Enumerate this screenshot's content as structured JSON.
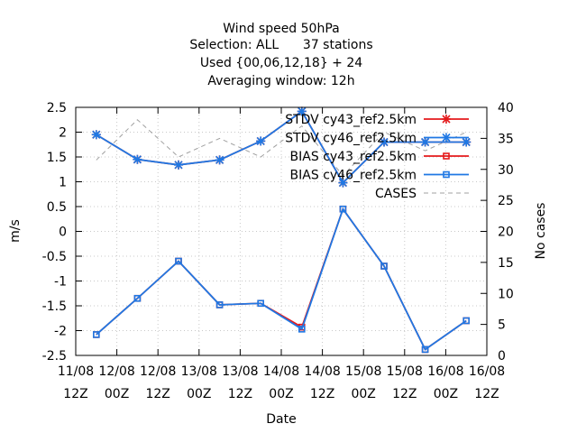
{
  "chart_data": {
    "type": "line",
    "title_lines": [
      "Wind speed 50hPa",
      "Selection: ALL      37 stations",
      "Used {00,06,12,18} + 24",
      "Averaging window: 12h"
    ],
    "xlabel": "Date",
    "ylabel": "m/s",
    "y2label": "No cases",
    "x_ticks": [
      {
        "line1": "11/08",
        "line2": "12Z"
      },
      {
        "line1": "12/08",
        "line2": "00Z"
      },
      {
        "line1": "12/08",
        "line2": "12Z"
      },
      {
        "line1": "13/08",
        "line2": "00Z"
      },
      {
        "line1": "13/08",
        "line2": "12Z"
      },
      {
        "line1": "14/08",
        "line2": "00Z"
      },
      {
        "line1": "14/08",
        "line2": "12Z"
      },
      {
        "line1": "15/08",
        "line2": "00Z"
      },
      {
        "line1": "15/08",
        "line2": "12Z"
      },
      {
        "line1": "16/08",
        "line2": "00Z"
      },
      {
        "line1": "16/08",
        "line2": "12Z"
      }
    ],
    "xlim": [
      0,
      10
    ],
    "ylim": [
      -2.5,
      2.5
    ],
    "y_ticks": [
      "-2.5",
      "-2",
      "-1.5",
      "-1",
      "-0.5",
      "0",
      "0.5",
      "1",
      "1.5",
      "2",
      "2.5"
    ],
    "y2lim": [
      0,
      40
    ],
    "y2_ticks": [
      "0",
      "5",
      "10",
      "15",
      "20",
      "25",
      "30",
      "35",
      "40"
    ],
    "grid": true,
    "legend_position": "top-right",
    "series": [
      {
        "name": "STDV cy43_ref2.5km",
        "color": "#e41a1c",
        "marker": "x",
        "axis": "y",
        "x": [
          0.5,
          1.5,
          2.5,
          3.5,
          4.5,
          5.5,
          6.5,
          7.5,
          8.5,
          9.5
        ],
        "y": [
          1.95,
          1.45,
          1.34,
          1.44,
          1.82,
          2.42,
          0.98,
          1.8,
          1.8,
          1.8
        ]
      },
      {
        "name": "STDV cy46_ref2.5km",
        "color": "#1f78e4",
        "marker": "x",
        "axis": "y",
        "x": [
          0.5,
          1.5,
          2.5,
          3.5,
          4.5,
          5.5,
          6.5,
          7.5,
          8.5,
          9.5
        ],
        "y": [
          1.95,
          1.45,
          1.34,
          1.44,
          1.82,
          2.42,
          0.98,
          1.8,
          1.8,
          1.8
        ]
      },
      {
        "name": "BIAS cy43_ref2.5km",
        "color": "#e41a1c",
        "marker": "square",
        "axis": "y",
        "x": [
          0.5,
          1.5,
          2.5,
          3.5,
          4.5,
          5.5,
          6.5,
          7.5,
          8.5,
          9.5
        ],
        "y": [
          -2.08,
          -1.35,
          -0.6,
          -1.48,
          -1.45,
          -1.93,
          0.45,
          -0.7,
          -2.38,
          -1.8
        ]
      },
      {
        "name": "BIAS cy46_ref2.5km",
        "color": "#1f78e4",
        "marker": "square",
        "axis": "y",
        "x": [
          0.5,
          1.5,
          2.5,
          3.5,
          4.5,
          5.5,
          6.5,
          7.5,
          8.5,
          9.5
        ],
        "y": [
          -2.08,
          -1.35,
          -0.6,
          -1.48,
          -1.45,
          -1.97,
          0.45,
          -0.7,
          -2.38,
          -1.8
        ]
      },
      {
        "name": "CASES",
        "color": "#a0a0a0",
        "marker": "none",
        "dashed": true,
        "axis": "y2",
        "x": [
          0.5,
          1.5,
          2.5,
          3.5,
          4.5,
          5.5,
          6.5,
          7.5,
          8.5,
          9.5
        ],
        "y": [
          31.5,
          38,
          32,
          35,
          32,
          37,
          29,
          36,
          33,
          36
        ]
      }
    ]
  }
}
